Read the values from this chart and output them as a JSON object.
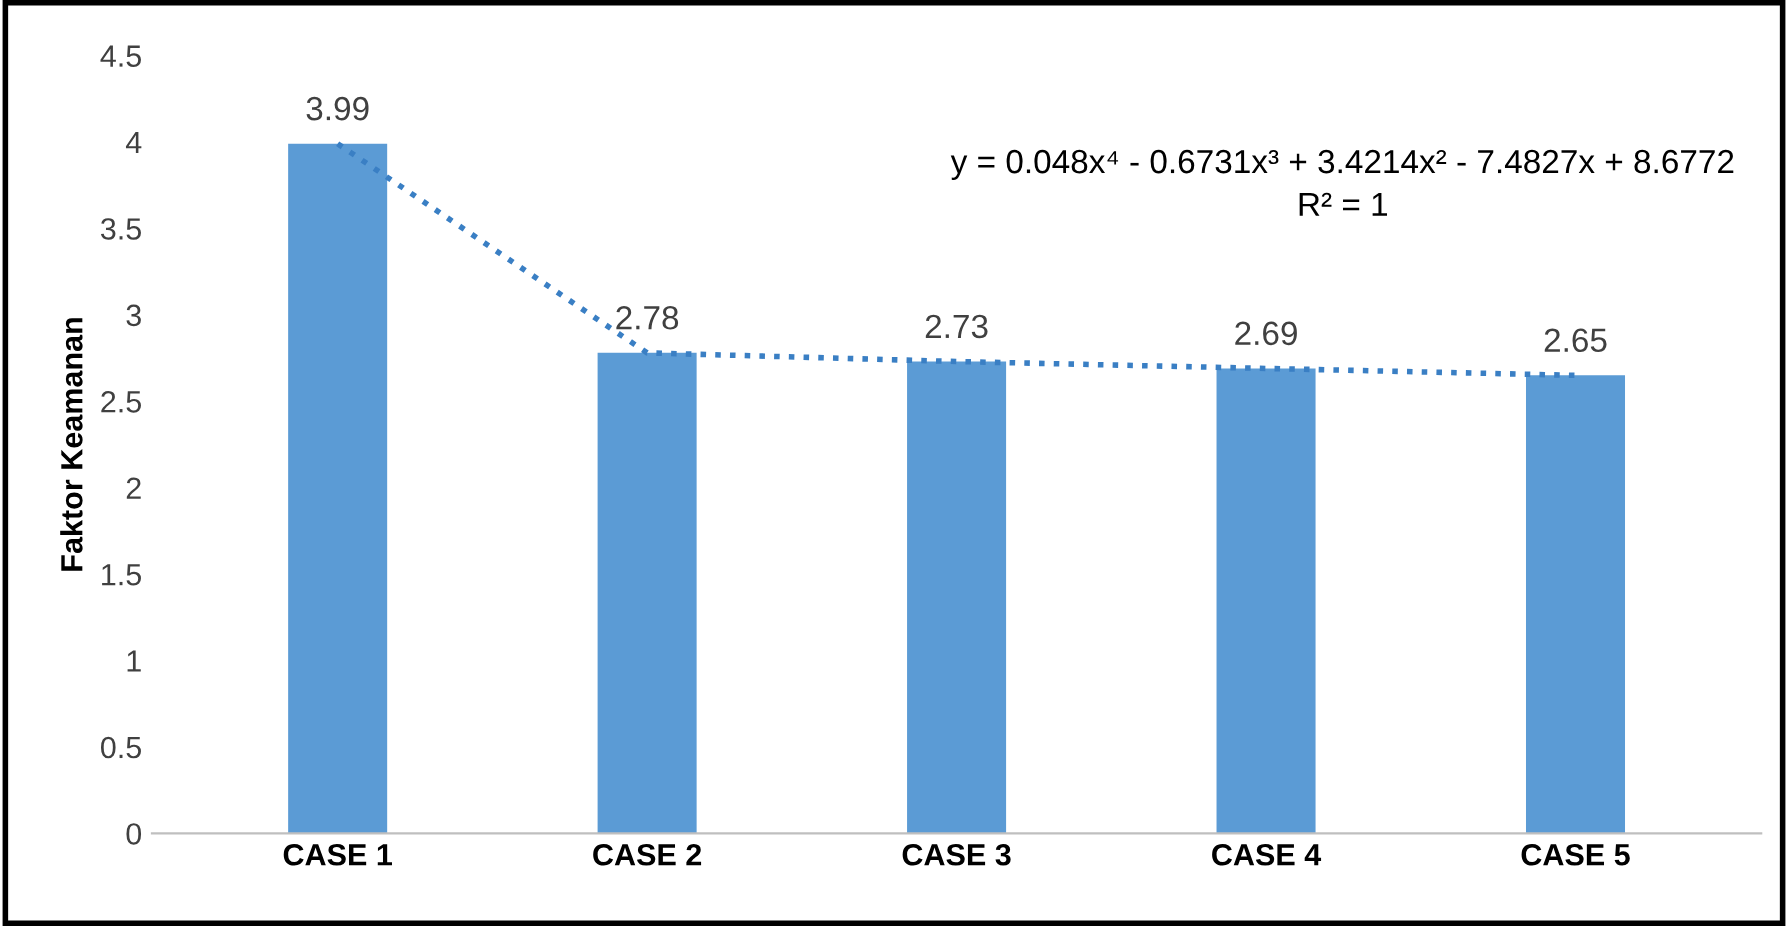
{
  "chart_data": {
    "type": "bar",
    "ylabel": "Faktor Keamanan",
    "categories": [
      "CASE 1",
      "CASE 2",
      "CASE 3",
      "CASE 4",
      "CASE 5"
    ],
    "series": [
      {
        "color": "#5b9bd5",
        "values": [
          3.99,
          2.78,
          2.73,
          2.69,
          2.65
        ]
      },
      {
        "type": "line",
        "color": "#3a7fc4",
        "line_style": "dotted",
        "values": [
          3.99,
          2.78,
          2.73,
          2.69,
          2.65
        ]
      }
    ],
    "value_labels": [
      "3.99",
      "2.78",
      "2.73",
      "2.69",
      "2.65"
    ],
    "ylim": [
      0,
      4.5
    ],
    "yticks": [
      0,
      0.5,
      1,
      1.5,
      2,
      2.5,
      3,
      3.5,
      4,
      4.5
    ],
    "grid": false,
    "legend": false,
    "annotations": [
      "y = 0.048x⁴ - 0.6731x³ + 3.4214x² - 7.4827x + 8.6772",
      "R² = 1"
    ]
  }
}
